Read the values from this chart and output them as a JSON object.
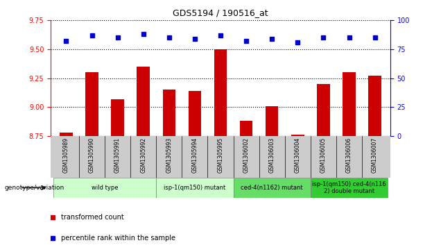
{
  "title": "GDS5194 / 190516_at",
  "samples": [
    "GSM1305989",
    "GSM1305990",
    "GSM1305991",
    "GSM1305992",
    "GSM1305993",
    "GSM1305994",
    "GSM1305995",
    "GSM1306002",
    "GSM1306003",
    "GSM1306004",
    "GSM1306005",
    "GSM1306006",
    "GSM1306007"
  ],
  "bar_values": [
    8.78,
    9.3,
    9.07,
    9.35,
    9.15,
    9.14,
    9.5,
    8.88,
    9.01,
    8.76,
    9.2,
    9.3,
    9.27
  ],
  "percentile_values": [
    82,
    87,
    85,
    88,
    85,
    84,
    87,
    82,
    84,
    81,
    85,
    85,
    85
  ],
  "ylim_left": [
    8.75,
    9.75
  ],
  "ylim_right": [
    0,
    100
  ],
  "yticks_left": [
    8.75,
    9.0,
    9.25,
    9.5,
    9.75
  ],
  "yticks_right": [
    0,
    25,
    50,
    75,
    100
  ],
  "bar_color": "#cc0000",
  "dot_color": "#0000cc",
  "bar_width": 0.5,
  "groups": [
    {
      "label": "wild type",
      "indices": [
        0,
        1,
        2,
        3
      ],
      "color": "#ccffcc"
    },
    {
      "label": "isp-1(qm150) mutant",
      "indices": [
        4,
        5,
        6
      ],
      "color": "#ccffcc"
    },
    {
      "label": "ced-4(n1162) mutant",
      "indices": [
        7,
        8,
        9
      ],
      "color": "#66dd66"
    },
    {
      "label": "isp-1(qm150) ced-4(n116\n2) double mutant",
      "indices": [
        10,
        11,
        12
      ],
      "color": "#33cc33"
    }
  ],
  "legend_dot_label": "percentile rank within the sample",
  "legend_bar_label": "transformed count",
  "tick_area_bg": "#cccccc",
  "fig_width": 6.36,
  "fig_height": 3.63,
  "dpi": 100
}
